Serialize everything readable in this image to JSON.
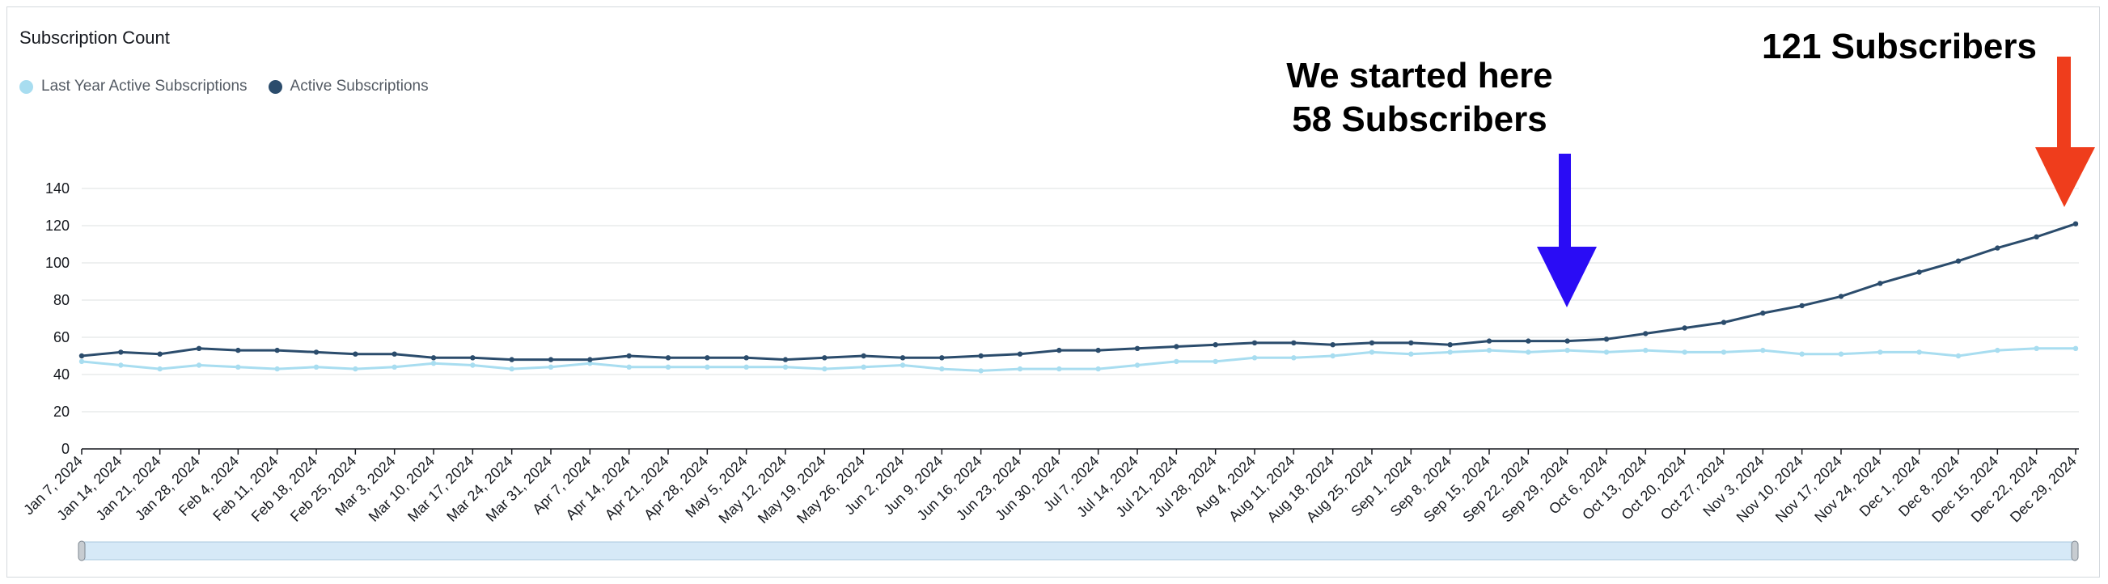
{
  "title": "Subscription Count",
  "colors": {
    "last_year": "#a8ddf0",
    "active": "#2b4c6c",
    "grid": "#e4e6e8",
    "blue_arrow": "#2a0cf5",
    "red_arrow": "#ef3d1c",
    "scrollbar": "#d6e9f7"
  },
  "legend": [
    {
      "label": "Last Year Active Subscriptions",
      "color": "#a8ddf0"
    },
    {
      "label": "Active Subscriptions",
      "color": "#2b4c6c"
    }
  ],
  "annotations": {
    "started_line1": "We started here",
    "started_line2": "58 Subscribers",
    "end_label": "121 Subscribers"
  },
  "chart_data": {
    "type": "line",
    "title": "Subscription Count",
    "ylim": [
      0,
      140
    ],
    "yticks": [
      0,
      20,
      40,
      60,
      80,
      100,
      120,
      140
    ],
    "grid": true,
    "legend_position": "top-left",
    "x": [
      "Jan 7, 2024",
      "Jan 14, 2024",
      "Jan 21, 2024",
      "Jan 28, 2024",
      "Feb 4, 2024",
      "Feb 11, 2024",
      "Feb 18, 2024",
      "Feb 25, 2024",
      "Mar 3, 2024",
      "Mar 10, 2024",
      "Mar 17, 2024",
      "Mar 24, 2024",
      "Mar 31, 2024",
      "Apr 7, 2024",
      "Apr 14, 2024",
      "Apr 21, 2024",
      "Apr 28, 2024",
      "May 5, 2024",
      "May 12, 2024",
      "May 19, 2024",
      "May 26, 2024",
      "Jun 2, 2024",
      "Jun 9, 2024",
      "Jun 16, 2024",
      "Jun 23, 2024",
      "Jun 30, 2024",
      "Jul 7, 2024",
      "Jul 14, 2024",
      "Jul 21, 2024",
      "Jul 28, 2024",
      "Aug 4, 2024",
      "Aug 11, 2024",
      "Aug 18, 2024",
      "Aug 25, 2024",
      "Sep 1, 2024",
      "Sep 8, 2024",
      "Sep 15, 2024",
      "Sep 22, 2024",
      "Sep 29, 2024",
      "Oct 6, 2024",
      "Oct 13, 2024",
      "Oct 20, 2024",
      "Oct 27, 2024",
      "Nov 3, 2024",
      "Nov 10, 2024",
      "Nov 17, 2024",
      "Nov 24, 2024",
      "Dec 1, 2024",
      "Dec 8, 2024",
      "Dec 15, 2024",
      "Dec 22, 2024",
      "Dec 29, 2024"
    ],
    "series": [
      {
        "name": "Last Year Active Subscriptions",
        "values": [
          47,
          45,
          43,
          45,
          44,
          43,
          44,
          43,
          44,
          46,
          45,
          43,
          44,
          46,
          44,
          44,
          44,
          44,
          44,
          43,
          44,
          45,
          43,
          42,
          43,
          43,
          43,
          45,
          47,
          47,
          49,
          49,
          50,
          52,
          51,
          52,
          53,
          52,
          53,
          52,
          53,
          52,
          52,
          53,
          51,
          51,
          52,
          52,
          50,
          53,
          54,
          54
        ]
      },
      {
        "name": "Active Subscriptions",
        "values": [
          50,
          52,
          51,
          54,
          53,
          53,
          52,
          51,
          51,
          49,
          49,
          48,
          48,
          48,
          50,
          49,
          49,
          49,
          48,
          49,
          50,
          49,
          49,
          50,
          51,
          53,
          53,
          54,
          55,
          56,
          57,
          57,
          56,
          57,
          57,
          56,
          58,
          58,
          58,
          59,
          62,
          65,
          68,
          73,
          77,
          82,
          89,
          95,
          101,
          108,
          114,
          121
        ]
      }
    ]
  }
}
